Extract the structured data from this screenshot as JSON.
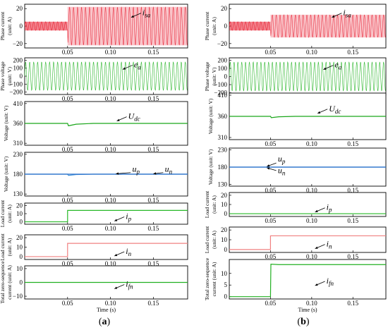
{
  "colors": {
    "phase_current": "#e8192c",
    "phase_voltage": "#2fb82f",
    "dc_voltage": "#1aa61a",
    "capacitor": "#3a8fd9",
    "load": "#26b826",
    "load_n": "#f08080",
    "zero_seq": "#22b022",
    "frame": "#000000"
  },
  "chart_data": [
    {
      "column": "(a)",
      "type": "line",
      "ylabel": "Phase current\n(unit: A)",
      "ylim": [
        -25,
        25
      ],
      "yticks": [
        "20",
        "0",
        "−20"
      ],
      "xlim": [
        0,
        0.19
      ],
      "xticks": [
        "0.05",
        "0.10",
        "0.15"
      ],
      "series": [
        {
          "name": "i_sa",
          "amplitude_before": 5,
          "amplitude_after": 22,
          "step_time": 0.05
        }
      ]
    },
    {
      "column": "(a)",
      "type": "line",
      "ylabel": "Phase voltage\n(unit: V)",
      "ylim": [
        -230,
        230
      ],
      "yticks": [
        "200",
        "100",
        "0",
        "−100",
        "−200"
      ],
      "xlim": [
        0,
        0.19
      ],
      "xticks": [
        "0.05",
        "0.10",
        "0.15"
      ],
      "series": [
        {
          "name": "e_a",
          "amplitude": 180
        }
      ]
    },
    {
      "column": "(a)",
      "type": "line",
      "ylabel": "Voltage (unit: V)",
      "ylim": [
        305,
        415
      ],
      "yticks": [
        "410",
        "360",
        "310"
      ],
      "xlim": [
        0,
        0.19
      ],
      "xticks": [
        "0.05",
        "0.10",
        "0.15"
      ],
      "series": [
        {
          "name": "U_dc",
          "points": [
            [
              0,
              360
            ],
            [
              0.05,
              360
            ],
            [
              0.051,
              354
            ],
            [
              0.06,
              358
            ],
            [
              0.08,
              360
            ],
            [
              0.19,
              360
            ]
          ]
        }
      ]
    },
    {
      "column": "(a)",
      "type": "line",
      "ylabel": "Voltage (unit: V)",
      "ylim": [
        125,
        235
      ],
      "yticks": [
        "230",
        "180",
        "130"
      ],
      "xlim": [
        0,
        0.19
      ],
      "xticks": [
        "0.05",
        "0.10",
        "0.15"
      ],
      "series": [
        {
          "name": "u_p",
          "points": [
            [
              0,
              180
            ],
            [
              0.05,
              180
            ],
            [
              0.051,
              177
            ],
            [
              0.06,
              179
            ],
            [
              0.08,
              180
            ],
            [
              0.19,
              180
            ]
          ]
        },
        {
          "name": "u_n",
          "points": [
            [
              0,
              180
            ],
            [
              0.19,
              180
            ]
          ]
        }
      ]
    },
    {
      "column": "(a)",
      "type": "line",
      "ylabel": "Load current\n(unit: A)",
      "ylim": [
        -3,
        23
      ],
      "yticks": [
        "20",
        "10",
        "0"
      ],
      "xlim": [
        0,
        0.19
      ],
      "xticks": [
        "0.05",
        "0.10",
        "0.15"
      ],
      "series": [
        {
          "name": "i_p",
          "points": [
            [
              0,
              0
            ],
            [
              0.05,
              0
            ],
            [
              0.05,
              14
            ],
            [
              0.19,
              14
            ]
          ]
        }
      ]
    },
    {
      "column": "(a)",
      "type": "line",
      "ylabel": "Load current\n(unit: A)",
      "ylim": [
        -3,
        23
      ],
      "yticks": [
        "20",
        "10",
        "0"
      ],
      "xlim": [
        0,
        0.19
      ],
      "xticks": [
        "0.05",
        "0.10",
        "0.15"
      ],
      "series": [
        {
          "name": "i_n",
          "points": [
            [
              0,
              0
            ],
            [
              0.05,
              0
            ],
            [
              0.05,
              14
            ],
            [
              0.19,
              14
            ]
          ]
        }
      ]
    },
    {
      "column": "(a)",
      "type": "line",
      "ylabel": "Total zero-sequence\ncurrent (unit: A)",
      "ylim": [
        -12,
        12
      ],
      "yticks": [
        "10",
        "0",
        "−10"
      ],
      "xlim": [
        0,
        0.19
      ],
      "xticks": [
        "0.05",
        "0.10",
        "0.15"
      ],
      "xlabel": "Time (s)",
      "series": [
        {
          "name": "i_fn",
          "points": [
            [
              0,
              0
            ],
            [
              0.19,
              0
            ]
          ]
        }
      ]
    },
    {
      "column": "(b)",
      "type": "line",
      "ylabel": "Phase current\n(unit: A)",
      "ylim": [
        -25,
        25
      ],
      "yticks": [
        "20",
        "0",
        "−20"
      ],
      "xlim": [
        0,
        0.19
      ],
      "xticks": [
        "0.05",
        "0.10",
        "0.15"
      ],
      "series": [
        {
          "name": "i_sa",
          "amplitude_before": 5,
          "amplitude_after": 13,
          "step_time": 0.05
        }
      ]
    },
    {
      "column": "(b)",
      "type": "line",
      "ylabel": "Phase voltage\n(unit: V)",
      "ylim": [
        -230,
        230
      ],
      "yticks": [
        "200",
        "100",
        "0",
        "−100",
        "−200"
      ],
      "xlim": [
        0,
        0.19
      ],
      "xticks": [
        "0.05",
        "0.10",
        "0.15"
      ],
      "series": [
        {
          "name": "e_a",
          "amplitude": 180
        }
      ]
    },
    {
      "column": "(b)",
      "type": "line",
      "ylabel": "Voltage (unit: V)",
      "ylim": [
        305,
        415
      ],
      "yticks": [
        "410",
        "360",
        "310"
      ],
      "xlim": [
        0,
        0.19
      ],
      "xticks": [
        "0.05",
        "0.10",
        "0.15"
      ],
      "series": [
        {
          "name": "U_dc",
          "points": [
            [
              0,
              360
            ],
            [
              0.05,
              360
            ],
            [
              0.051,
              357
            ],
            [
              0.06,
              359
            ],
            [
              0.08,
              360
            ],
            [
              0.19,
              360
            ]
          ]
        }
      ]
    },
    {
      "column": "(b)",
      "type": "line",
      "ylabel": "Voltage (unit: V)",
      "ylim": [
        125,
        235
      ],
      "yticks": [
        "230",
        "180",
        "130"
      ],
      "xlim": [
        0,
        0.19
      ],
      "xticks": [
        "0.05",
        "0.10",
        "0.15"
      ],
      "series": [
        {
          "name": "u_p",
          "points": [
            [
              0,
              180
            ],
            [
              0.19,
              180
            ]
          ]
        },
        {
          "name": "u_n",
          "points": [
            [
              0,
              180
            ],
            [
              0.19,
              180
            ]
          ]
        }
      ]
    },
    {
      "column": "(b)",
      "type": "line",
      "ylabel": "Load current\n(unit: A)",
      "ylim": [
        -3,
        23
      ],
      "yticks": [
        "20",
        "10",
        "0"
      ],
      "xlim": [
        0,
        0.19
      ],
      "xticks": [
        "0.05",
        "0.10",
        "0.15"
      ],
      "series": [
        {
          "name": "i_p",
          "points": [
            [
              0,
              0
            ],
            [
              0.19,
              0
            ]
          ]
        }
      ]
    },
    {
      "column": "(b)",
      "type": "line",
      "ylabel": "Load current\n(unit: A)",
      "ylim": [
        -3,
        23
      ],
      "yticks": [
        "20",
        "10",
        "0"
      ],
      "xlim": [
        0,
        0.19
      ],
      "xticks": [
        "0.05",
        "0.10",
        "0.15"
      ],
      "series": [
        {
          "name": "i_n",
          "points": [
            [
              0,
              0
            ],
            [
              0.05,
              0
            ],
            [
              0.05,
              14
            ],
            [
              0.19,
              14
            ]
          ]
        }
      ]
    },
    {
      "column": "(b)",
      "type": "line",
      "ylabel": "Total zero-sequence\ncurrent (unit: A)",
      "ylim": [
        -1,
        16
      ],
      "yticks": [
        "10",
        "5",
        "0"
      ],
      "xlim": [
        0,
        0.19
      ],
      "xticks": [
        "0.05",
        "0.10",
        "0.15"
      ],
      "xlabel": "Time (s)",
      "series": [
        {
          "name": "i_fn",
          "points": [
            [
              0,
              0
            ],
            [
              0.05,
              0
            ],
            [
              0.0505,
              14
            ],
            [
              0.06,
              13.8
            ],
            [
              0.19,
              13.8
            ]
          ]
        }
      ]
    }
  ],
  "captions": {
    "left": "(a)",
    "right": "(b)"
  }
}
